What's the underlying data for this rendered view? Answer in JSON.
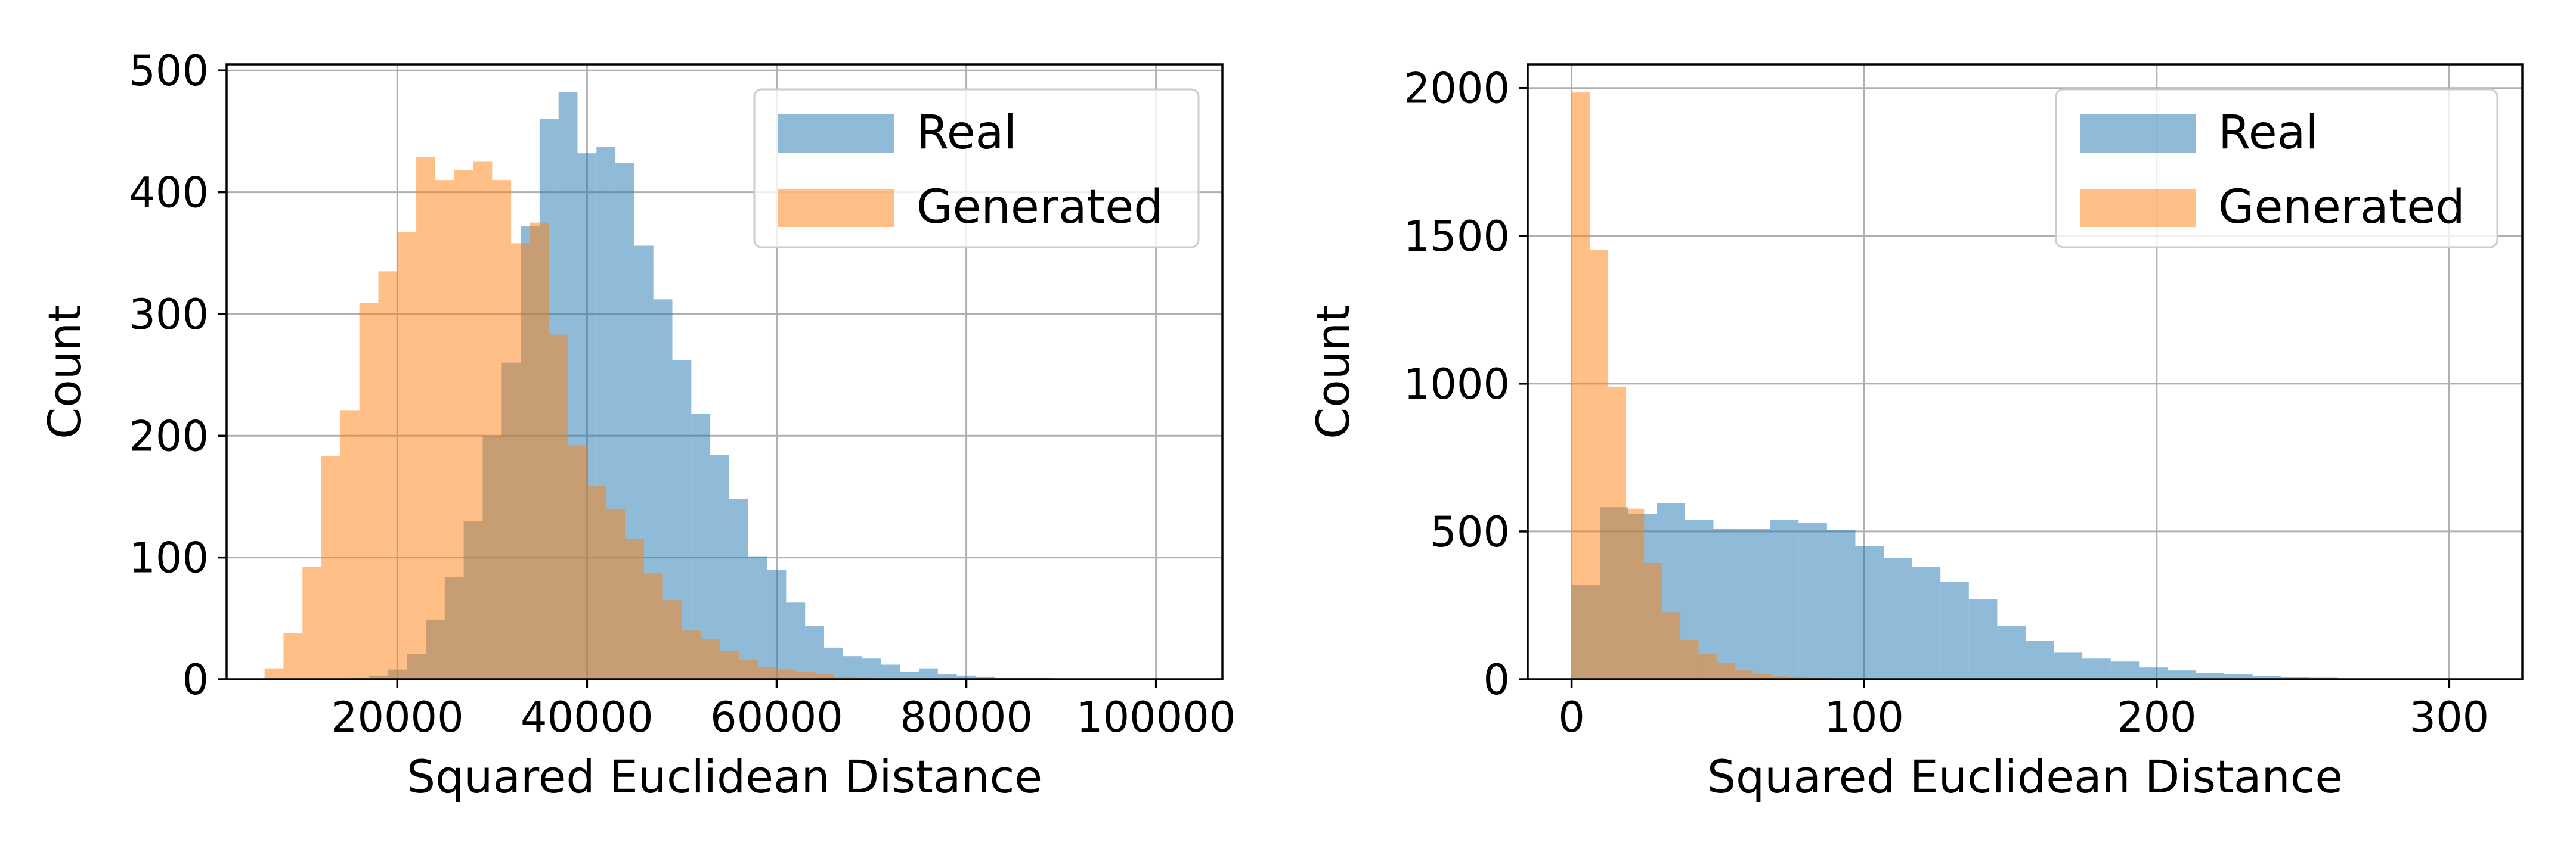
{
  "chart_data": [
    {
      "type": "histogram",
      "xlabel": "Squared Euclidean Distance",
      "ylabel": "Count",
      "xlim": [
        2000,
        107000
      ],
      "ylim": [
        0,
        505
      ],
      "xticks": [
        20000,
        40000,
        60000,
        80000,
        100000
      ],
      "xtick_labels": [
        "20000",
        "40000",
        "60000",
        "80000",
        "100000"
      ],
      "yticks": [
        0,
        100,
        200,
        300,
        400,
        500
      ],
      "ytick_labels": [
        "0",
        "100",
        "200",
        "300",
        "400",
        "500"
      ],
      "grid": true,
      "legend_position": "top-right",
      "series": [
        {
          "name": "Real",
          "color": "#1f77b4",
          "alpha": 0.5,
          "bin_start": 15000,
          "bin_width": 2000,
          "counts": [
            1,
            3,
            8,
            21,
            49,
            84,
            130,
            200,
            260,
            372,
            460,
            482,
            432,
            437,
            424,
            356,
            312,
            262,
            218,
            184,
            148,
            101,
            90,
            63,
            44,
            26,
            19,
            17,
            12,
            6,
            9,
            4,
            3,
            2,
            1,
            1,
            1
          ]
        },
        {
          "name": "Generated",
          "color": "#ff7f0e",
          "alpha": 0.5,
          "bin_start": 6000,
          "bin_width": 2000,
          "counts": [
            9,
            38,
            92,
            183,
            221,
            309,
            335,
            367,
            429,
            410,
            418,
            425,
            410,
            358,
            375,
            283,
            192,
            159,
            140,
            115,
            87,
            65,
            40,
            33,
            23,
            16,
            10,
            8,
            6,
            4,
            2,
            1
          ]
        }
      ]
    },
    {
      "type": "histogram",
      "xlabel": "Squared Euclidean Distance",
      "ylabel": "Count",
      "xlim": [
        -15,
        325
      ],
      "ylim": [
        0,
        2080
      ],
      "xticks": [
        0,
        100,
        200,
        300
      ],
      "xtick_labels": [
        "0",
        "100",
        "200",
        "300"
      ],
      "yticks": [
        0,
        500,
        1000,
        1500,
        2000
      ],
      "ytick_labels": [
        "0",
        "500",
        "1000",
        "1500",
        "2000"
      ],
      "grid": true,
      "legend_position": "top-right",
      "series": [
        {
          "name": "Real",
          "color": "#1f77b4",
          "alpha": 0.5,
          "bin_start": 0,
          "bin_width": 9.7,
          "counts": [
            320,
            582,
            559,
            595,
            540,
            510,
            508,
            540,
            530,
            505,
            450,
            410,
            380,
            330,
            270,
            180,
            130,
            90,
            70,
            60,
            40,
            30,
            22,
            18,
            12,
            8,
            5,
            2
          ]
        },
        {
          "name": "Generated",
          "color": "#ff7f0e",
          "alpha": 0.5,
          "bin_start": 0,
          "bin_width": 6.2,
          "counts": [
            1985,
            1452,
            990,
            577,
            393,
            227,
            133,
            85,
            55,
            30,
            18,
            10,
            6,
            4,
            2,
            1
          ]
        }
      ]
    }
  ]
}
